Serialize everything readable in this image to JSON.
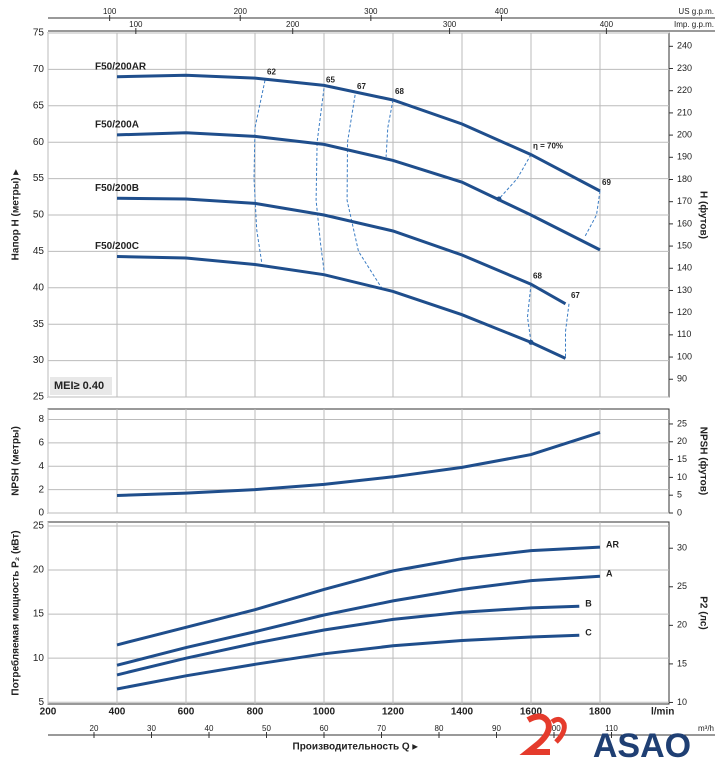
{
  "chart_data": [
    {
      "type": "line",
      "ylabel": "Напор H (метры) ▸",
      "y2label": "H (футов)",
      "mei_label": "MEI≥ 0.40",
      "xlim": [
        200,
        2000
      ],
      "xticks": [
        200,
        400,
        600,
        800,
        1000,
        1200,
        1400,
        1600,
        1800
      ],
      "ylim": [
        25,
        75
      ],
      "yticks": [
        25,
        30,
        35,
        40,
        45,
        50,
        55,
        60,
        65,
        70,
        75
      ],
      "y2lim": [
        82,
        246
      ],
      "y2ticks": [
        90,
        100,
        110,
        120,
        130,
        140,
        150,
        160,
        170,
        180,
        190,
        200,
        210,
        220,
        230,
        240
      ],
      "grid": true,
      "secondary_x_axes": [
        {
          "label": "US g.p.m.",
          "lim": [
            52.8,
            528.3
          ],
          "ticks": [
            100,
            200,
            300,
            400
          ]
        },
        {
          "label": "Imp. g.p.m.",
          "lim": [
            44.0,
            439.9
          ],
          "ticks": [
            100,
            200,
            300,
            400
          ]
        }
      ],
      "series": [
        {
          "name": "F50/200AR",
          "color": "#1f4e8c",
          "x": [
            400,
            600,
            800,
            1000,
            1200,
            1400,
            1600,
            1800
          ],
          "values": [
            69,
            69.2,
            68.8,
            67.8,
            65.8,
            62.5,
            58.3,
            53.3
          ]
        },
        {
          "name": "F50/200A",
          "color": "#1f4e8c",
          "x": [
            400,
            600,
            800,
            1000,
            1200,
            1400,
            1600,
            1800
          ],
          "values": [
            61,
            61.3,
            60.8,
            59.7,
            57.5,
            54.5,
            50,
            45.2
          ]
        },
        {
          "name": "F50/200B",
          "color": "#1f4e8c",
          "x": [
            400,
            600,
            800,
            1000,
            1200,
            1400,
            1600,
            1700
          ],
          "values": [
            52.3,
            52.2,
            51.6,
            50,
            47.8,
            44.5,
            40.5,
            37.8
          ]
        },
        {
          "name": "F50/200C",
          "color": "#1f4e8c",
          "x": [
            400,
            600,
            800,
            1000,
            1200,
            1400,
            1600,
            1700
          ],
          "values": [
            44.3,
            44.1,
            43.2,
            41.8,
            39.5,
            36.3,
            32.5,
            30.3
          ]
        }
      ],
      "efficiency_lines": [
        {
          "label": "62",
          "x": [
            829,
            800,
            797,
            805,
            820
          ],
          "values": [
            68.5,
            62,
            55,
            48,
            43.3
          ]
        },
        {
          "label": "65",
          "x": [
            1000,
            980,
            977,
            990,
            1000
          ],
          "values": [
            67.4,
            60,
            52,
            46,
            42.4
          ]
        },
        {
          "label": "67",
          "x": [
            1090,
            1068,
            1067,
            1100,
            1168
          ],
          "values": [
            66.5,
            60,
            52,
            45,
            39.9
          ]
        },
        {
          "label": "68",
          "x": [
            1200,
            1185,
            1180
          ],
          "values": [
            65.8,
            62,
            58
          ]
        },
        {
          "label": "η = 70%",
          "x": [
            1600,
            1560,
            1507
          ],
          "values": [
            58.3,
            55,
            52.2
          ]
        },
        {
          "label": "69",
          "x": [
            1800,
            1790,
            1756
          ],
          "values": [
            53.3,
            50,
            47
          ]
        },
        {
          "label": "68",
          "x": [
            1600,
            1590,
            1600
          ],
          "values": [
            40.5,
            36,
            32.5
          ]
        },
        {
          "label": "67",
          "x": [
            1710,
            1700,
            1700
          ],
          "values": [
            37.8,
            34,
            30.3
          ]
        }
      ],
      "dots": [
        {
          "x": 1507,
          "y": 52.2
        },
        {
          "x": 1600,
          "y": 32.5
        }
      ]
    },
    {
      "type": "line",
      "ylabel": "NPSH (метры)",
      "y2label": "NPSH (футов)",
      "xlim": [
        200,
        2000
      ],
      "xticks": [
        200,
        400,
        600,
        800,
        1000,
        1200,
        1400,
        1600,
        1800
      ],
      "ylim": [
        0,
        8.9
      ],
      "yticks": [
        0,
        2,
        4,
        6,
        8
      ],
      "y2lim": [
        0,
        29.2
      ],
      "y2ticks": [
        0,
        5,
        10,
        15,
        20,
        25
      ],
      "grid": true,
      "series": [
        {
          "color": "#1f4e8c",
          "x": [
            400,
            600,
            800,
            1000,
            1200,
            1400,
            1600,
            1800
          ],
          "values": [
            1.5,
            1.7,
            2.0,
            2.45,
            3.1,
            3.9,
            5.0,
            6.9
          ]
        }
      ]
    },
    {
      "type": "line",
      "ylabel": "Потребляемая мощность P₂ (кВт)",
      "y2label": "P2 (лс)",
      "xlabel": "Производительность Q ▸",
      "x_unit": "l/min",
      "xlim": [
        200,
        2000
      ],
      "xticks": [
        200,
        400,
        600,
        800,
        1000,
        1200,
        1400,
        1600,
        1800
      ],
      "ylim": [
        4.8,
        25.45
      ],
      "yticks": [
        5,
        10,
        15,
        20,
        25
      ],
      "y2lim": [
        9.8,
        33.4
      ],
      "y2ticks": [
        10,
        15,
        20,
        25,
        30
      ],
      "grid": true,
      "secondary_x_axes": [
        {
          "label": "m³/h",
          "lim": [
            12,
            120
          ],
          "ticks": [
            20,
            30,
            40,
            50,
            60,
            70,
            80,
            90,
            100,
            110
          ]
        }
      ],
      "series": [
        {
          "name": "AR",
          "color": "#1f4e8c",
          "x": [
            400,
            600,
            800,
            1000,
            1200,
            1400,
            1600,
            1800
          ],
          "values": [
            11.5,
            13.5,
            15.5,
            17.8,
            19.9,
            21.3,
            22.2,
            22.6
          ]
        },
        {
          "name": "A",
          "color": "#1f4e8c",
          "x": [
            400,
            600,
            800,
            1000,
            1200,
            1400,
            1600,
            1800
          ],
          "values": [
            9.2,
            11.2,
            13,
            14.9,
            16.5,
            17.8,
            18.8,
            19.3
          ]
        },
        {
          "name": "B",
          "color": "#1f4e8c",
          "x": [
            400,
            600,
            800,
            1000,
            1200,
            1400,
            1600,
            1740
          ],
          "values": [
            8.1,
            10,
            11.7,
            13.2,
            14.4,
            15.2,
            15.7,
            15.9
          ]
        },
        {
          "name": "C",
          "color": "#1f4e8c",
          "x": [
            400,
            600,
            800,
            1000,
            1200,
            1400,
            1600,
            1740
          ],
          "values": [
            6.5,
            8,
            9.3,
            10.5,
            11.4,
            12,
            12.4,
            12.6
          ]
        }
      ]
    }
  ],
  "logo": "ASAO"
}
